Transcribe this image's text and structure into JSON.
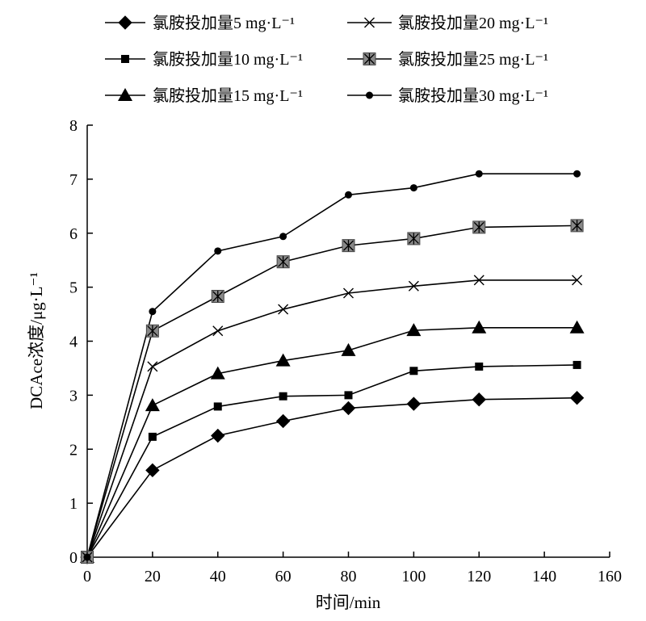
{
  "chart_data": {
    "type": "line",
    "xlabel": "时间/min",
    "ylabel": "DCAce浓度/μg·L⁻¹",
    "xlim": [
      0,
      160
    ],
    "ylim": [
      0,
      8
    ],
    "xticks": [
      "0",
      "20",
      "40",
      "60",
      "80",
      "100",
      "120",
      "140",
      "160"
    ],
    "yticks": [
      "0",
      "1",
      "2",
      "3",
      "4",
      "5",
      "6",
      "7",
      "8"
    ],
    "grid": false,
    "legend_position": "top",
    "x": [
      0,
      20,
      40,
      60,
      80,
      100,
      120,
      150
    ],
    "series": [
      {
        "name": "氯胺投加量5 mg·L⁻¹",
        "marker": "diamond",
        "values": [
          0,
          1.61,
          2.25,
          2.52,
          2.76,
          2.84,
          2.92,
          2.95
        ]
      },
      {
        "name": "氯胺投加量10 mg·L⁻¹",
        "marker": "square",
        "values": [
          0,
          2.23,
          2.79,
          2.98,
          3.0,
          3.45,
          3.53,
          3.56
        ]
      },
      {
        "name": "氯胺投加量15 mg·L⁻¹",
        "marker": "triangle",
        "values": [
          0,
          2.81,
          3.4,
          3.64,
          3.83,
          4.2,
          4.25,
          4.25
        ]
      },
      {
        "name": "氯胺投加量20 mg·L⁻¹",
        "marker": "x",
        "values": [
          0,
          3.53,
          4.19,
          4.59,
          4.89,
          5.02,
          5.13,
          5.13
        ]
      },
      {
        "name": "氯胺投加量25 mg·L⁻¹",
        "marker": "star-square",
        "values": [
          0,
          4.19,
          4.83,
          5.47,
          5.77,
          5.9,
          6.11,
          6.14
        ]
      },
      {
        "name": "氯胺投加量30 mg·L⁻¹",
        "marker": "circle",
        "values": [
          0,
          4.55,
          5.67,
          5.94,
          6.71,
          6.84,
          7.1,
          7.1
        ]
      }
    ]
  }
}
